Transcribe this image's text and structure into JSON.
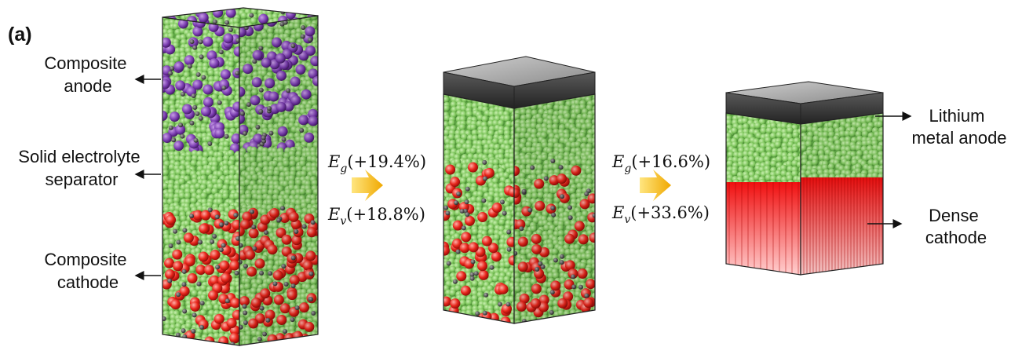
{
  "panel_label": "(a)",
  "labels": [
    {
      "lines": [
        "Composite",
        "anode"
      ]
    },
    {
      "lines": [
        "Solid electrolyte",
        "separator"
      ]
    },
    {
      "lines": [
        "Composite",
        "cathode"
      ]
    },
    {
      "lines": [
        "Lithium",
        "metal anode"
      ]
    },
    {
      "lines": [
        "Dense",
        "cathode"
      ]
    }
  ],
  "equations": [
    {
      "symbol": "E",
      "subscript": "g",
      "value": "(+19.4%)"
    },
    {
      "symbol": "E",
      "subscript": "v",
      "value": "(+18.8%)"
    },
    {
      "symbol": "E",
      "subscript": "g",
      "value": "(+16.6%)"
    },
    {
      "symbol": "E",
      "subscript": "v",
      "value": "(+33.6%)"
    }
  ]
}
